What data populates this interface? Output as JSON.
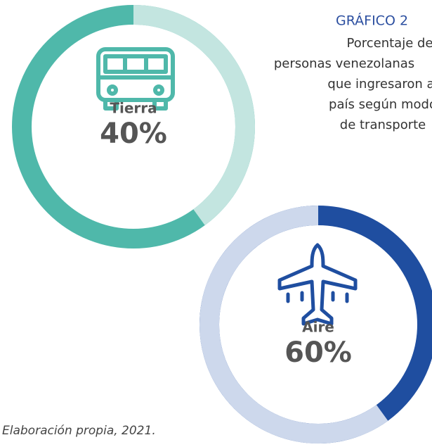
{
  "chart_data": [
    {
      "type": "donut",
      "title": "GRÁFICO 2",
      "subtitle": [
        "Porcentaje de",
        "personas venezolanas",
        "que ingresaron al",
        "país según modo",
        "de transporte"
      ],
      "label": "Tierra",
      "value": 40,
      "value_label": "40%",
      "color": "#c3e5e0",
      "track_color": "#4fb8aa",
      "clockwise": true
    },
    {
      "type": "donut",
      "label": "Aire",
      "value": 60,
      "value_label": "60%",
      "color": "#cdd8ec",
      "track_color": "#1f4ea0",
      "clockwise": false
    }
  ],
  "source": "Elaboración propia, 2021."
}
